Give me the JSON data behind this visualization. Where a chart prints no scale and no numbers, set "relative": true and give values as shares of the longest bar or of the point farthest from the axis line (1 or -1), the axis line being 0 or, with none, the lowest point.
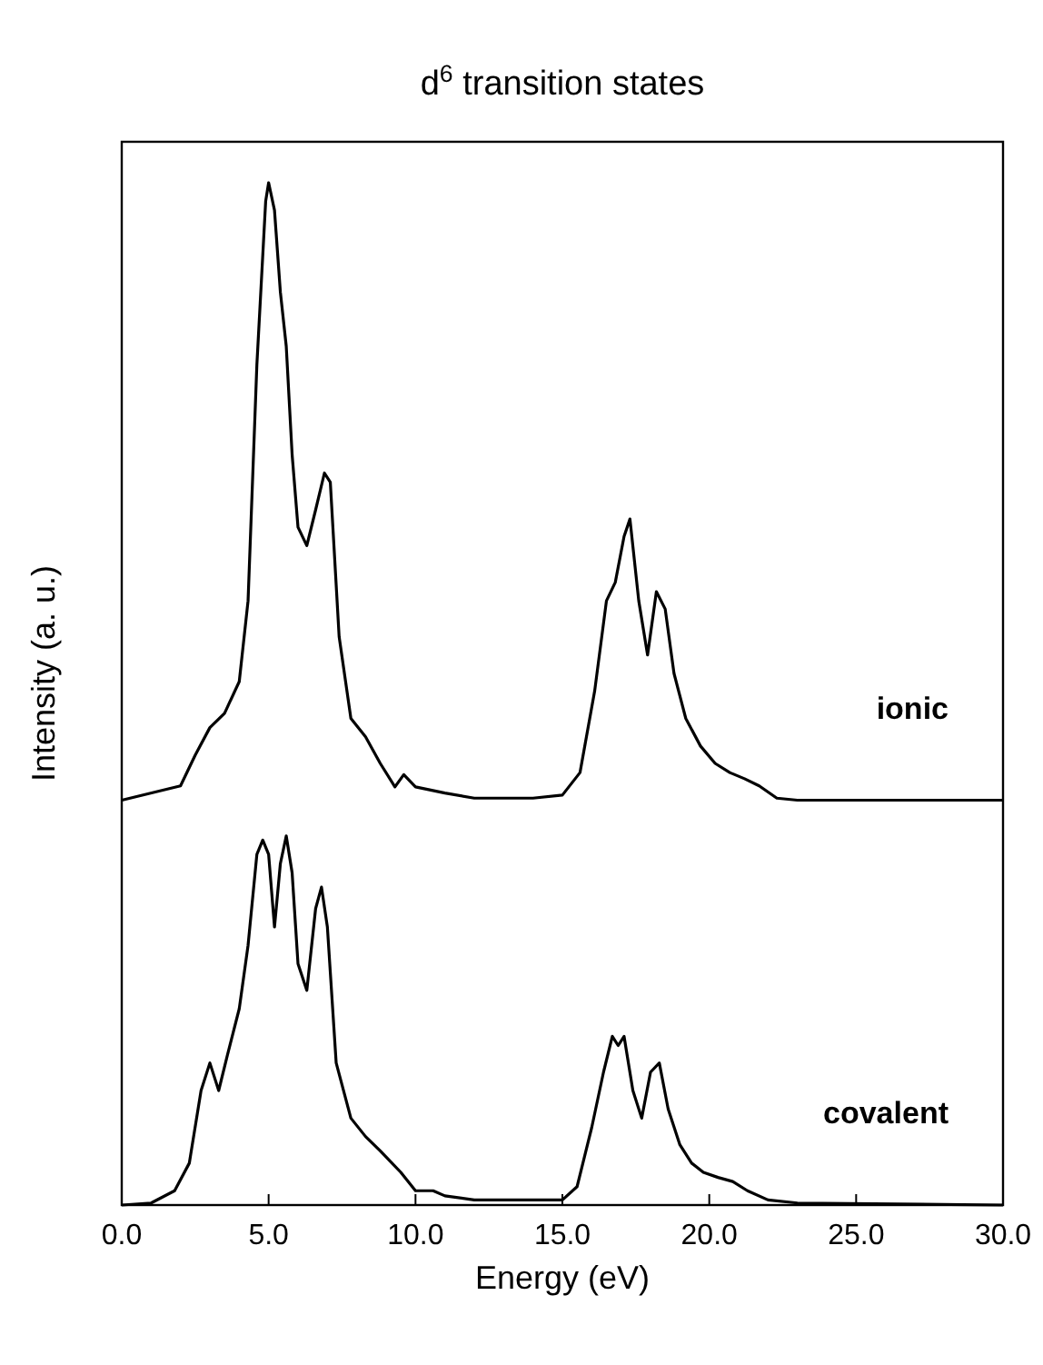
{
  "chart_data": {
    "type": "line",
    "title": "d$^{6}$ transition states",
    "xlabel": "Energy (eV)",
    "ylabel": "Intensity (a. u.)",
    "relative": true,
    "xlim": [
      0,
      30
    ],
    "xticks": [
      {
        "value": 0,
        "label": "0.0"
      },
      {
        "value": 5,
        "label": "5.0"
      },
      {
        "value": 10,
        "label": "10.0"
      },
      {
        "value": 15,
        "label": "15.0"
      },
      {
        "value": 20,
        "label": "20.0"
      },
      {
        "value": 25,
        "label": "25.0"
      },
      {
        "value": 30,
        "label": "30.0"
      }
    ],
    "grid": false,
    "legend": false,
    "marker": "none",
    "line_style": "solid",
    "series": [
      {
        "name": "ionic",
        "color": "#000000",
        "x": [
          0,
          2,
          2.5,
          3,
          3.5,
          4,
          4.3,
          4.6,
          4.9,
          5,
          5.2,
          5.4,
          5.6,
          5.8,
          6,
          6.3,
          6.6,
          6.9,
          7.1,
          7.4,
          7.8,
          8.3,
          8.8,
          9.3,
          9.6,
          10,
          11,
          12,
          14,
          15,
          15.6,
          16.1,
          16.5,
          16.8,
          17.1,
          17.3,
          17.6,
          17.9,
          18.2,
          18.5,
          18.8,
          19.2,
          19.7,
          20.2,
          20.7,
          21.2,
          21.7,
          22.3,
          23,
          30
        ],
        "values": [
          0.396,
          0.41,
          0.44,
          0.467,
          0.481,
          0.512,
          0.591,
          0.822,
          0.982,
          1,
          0.973,
          0.893,
          0.84,
          0.734,
          0.663,
          0.645,
          0.68,
          0.716,
          0.707,
          0.556,
          0.476,
          0.458,
          0.432,
          0.409,
          0.421,
          0.409,
          0.403,
          0.398,
          0.398,
          0.401,
          0.423,
          0.503,
          0.591,
          0.609,
          0.654,
          0.671,
          0.591,
          0.538,
          0.6,
          0.583,
          0.52,
          0.476,
          0.449,
          0.432,
          0.423,
          0.417,
          0.41,
          0.398,
          0.396,
          0.396
        ]
      },
      {
        "name": "covalent",
        "color": "#000000",
        "x": [
          0,
          1,
          1.8,
          2.3,
          2.7,
          3,
          3.3,
          3.6,
          4,
          4.3,
          4.6,
          4.8,
          5,
          5.2,
          5.4,
          5.6,
          5.8,
          6,
          6.3,
          6.6,
          6.8,
          7,
          7.3,
          7.8,
          8.3,
          8.8,
          9.2,
          9.5,
          10,
          10.6,
          11,
          12,
          15,
          15.5,
          16,
          16.4,
          16.7,
          16.9,
          17.1,
          17.4,
          17.7,
          18,
          18.3,
          18.6,
          19,
          19.4,
          19.8,
          20.3,
          20.8,
          21.3,
          22,
          23,
          30
        ],
        "values": [
          0,
          0.002,
          0.014,
          0.041,
          0.112,
          0.139,
          0.112,
          0.147,
          0.192,
          0.254,
          0.343,
          0.357,
          0.343,
          0.272,
          0.334,
          0.361,
          0.325,
          0.236,
          0.21,
          0.29,
          0.311,
          0.272,
          0.139,
          0.085,
          0.067,
          0.053,
          0.041,
          0.032,
          0.014,
          0.014,
          0.009,
          0.005,
          0.005,
          0.018,
          0.076,
          0.13,
          0.165,
          0.156,
          0.165,
          0.112,
          0.085,
          0.13,
          0.139,
          0.094,
          0.059,
          0.041,
          0.032,
          0.027,
          0.023,
          0.014,
          0.005,
          0.002,
          0
        ]
      }
    ]
  }
}
